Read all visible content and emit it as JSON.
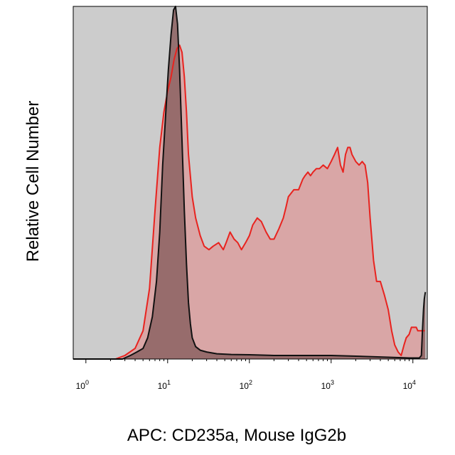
{
  "chart_data": {
    "type": "area",
    "title": "",
    "xlabel": "APC: CD235a, Mouse IgG2b",
    "ylabel": "Relative Cell Number",
    "xscale": "log",
    "xlim": [
      0.7,
      15000
    ],
    "ylim": [
      0,
      100
    ],
    "grid": false,
    "legend": "none",
    "background_color": "#cccccc",
    "x_ticks": [
      {
        "base": "10",
        "exp": "0",
        "value": 1
      },
      {
        "base": "10",
        "exp": "1",
        "value": 10
      },
      {
        "base": "10",
        "exp": "2",
        "value": 100
      },
      {
        "base": "10",
        "exp": "3",
        "value": 1000
      },
      {
        "base": "10",
        "exp": "4",
        "value": 10000
      }
    ],
    "series": [
      {
        "line_color": "#e8231f",
        "fill_color": "#d9a6a6",
        "x": [
          0.7,
          2.3,
          3.0,
          4.0,
          5.0,
          6.0,
          7.0,
          8.0,
          9.0,
          10.0,
          11.0,
          12.0,
          13.0,
          14.0,
          15.0,
          16.0,
          17.0,
          18.0,
          20.0,
          22.0,
          25.0,
          28.0,
          32.0,
          36.0,
          42.0,
          48.0,
          52.0,
          58.0,
          65.0,
          72.0,
          80.0,
          90.0,
          100.0,
          110.0,
          125.0,
          140.0,
          160.0,
          180.0,
          200.0,
          230.0,
          260.0,
          280.0,
          300.0,
          350.0,
          400.0,
          450.0,
          480.0,
          520.0,
          560.0,
          600.0,
          660.0,
          720.0,
          800.0,
          900.0,
          1000.0,
          1100.0,
          1200.0,
          1300.0,
          1400.0,
          1500.0,
          1600.0,
          1700.0,
          1800.0,
          1900.0,
          2000.0,
          2200.0,
          2400.0,
          2600.0,
          2800.0,
          3000.0,
          3300.0,
          3600.0,
          4000.0,
          4500.0,
          5000.0,
          5500.0,
          6000.0,
          6600.0,
          7200.0,
          7800.0,
          8300.0,
          9000.0,
          9600.0,
          10000.0,
          10500.0,
          11000.0,
          11500.0,
          12000.0,
          12500.0,
          13000.0,
          13500.0,
          14000.0
        ],
        "y": [
          0,
          0,
          1,
          3,
          8,
          20,
          42,
          60,
          70,
          76,
          80,
          85,
          88,
          89,
          87,
          80,
          70,
          58,
          46,
          40,
          35,
          32,
          31,
          32,
          33,
          31,
          33,
          36,
          34,
          33,
          31,
          33,
          35,
          38,
          40,
          39,
          36,
          34,
          34,
          37,
          40,
          43,
          46,
          48,
          48,
          51,
          52,
          53,
          52,
          53,
          54,
          54,
          55,
          54,
          56,
          58,
          60,
          55,
          53,
          58,
          60,
          60,
          58,
          57,
          56,
          55,
          56,
          55,
          50,
          40,
          28,
          22,
          22,
          18,
          14,
          8,
          4,
          2,
          1,
          4,
          6,
          7,
          9,
          9,
          9,
          9,
          8,
          8,
          8,
          8,
          8,
          8
        ]
      },
      {
        "line_color": "#111111",
        "fill_color": "#8f6666",
        "x": [
          0.7,
          2.8,
          3.5,
          4.2,
          5.0,
          5.7,
          6.5,
          7.3,
          8.0,
          8.7,
          9.5,
          10.2,
          11.0,
          11.8,
          12.5,
          13.2,
          14.0,
          15.0,
          16.0,
          17.0,
          18.0,
          19.0,
          20.0,
          22.0,
          25.0,
          30.0,
          40.0,
          60.0,
          100.0,
          200.0,
          500.0,
          1000.0,
          2000.0,
          5000.0,
          9000.0,
          11000.0,
          12000.0,
          12700.0,
          13100.0,
          13500.0,
          13800.0,
          14200.0
        ],
        "y": [
          0,
          0,
          1,
          2,
          3,
          6,
          12,
          22,
          36,
          55,
          70,
          82,
          92,
          99,
          100,
          95,
          82,
          62,
          42,
          27,
          16,
          10,
          6,
          3.5,
          2.5,
          2,
          1.5,
          1.3,
          1.2,
          1,
          1,
          1,
          0.8,
          0.5,
          0.3,
          0.3,
          0.3,
          1,
          8,
          14,
          17,
          19
        ]
      }
    ]
  }
}
